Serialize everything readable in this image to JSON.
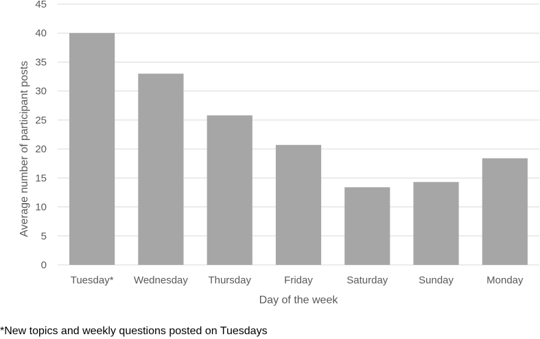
{
  "chart_data": {
    "type": "bar",
    "title": "",
    "xlabel": "Day of the week",
    "ylabel": "Average number of participant posts",
    "categories": [
      "Tuesday*",
      "Wednesday",
      "Thursday",
      "Friday",
      "Saturday",
      "Sunday",
      "Monday"
    ],
    "values": [
      40,
      33,
      25.8,
      20.7,
      13.4,
      14.3,
      18.4
    ],
    "ylim": [
      0,
      45
    ],
    "yticks": [
      0,
      5,
      10,
      15,
      20,
      25,
      30,
      35,
      40,
      45
    ],
    "grid": true,
    "legend": "none",
    "bar_color": "#a6a6a6",
    "grid_color": "#d9d9d9",
    "text_color": "#595959"
  },
  "footnote": "*New topics and weekly questions posted on Tuesdays"
}
